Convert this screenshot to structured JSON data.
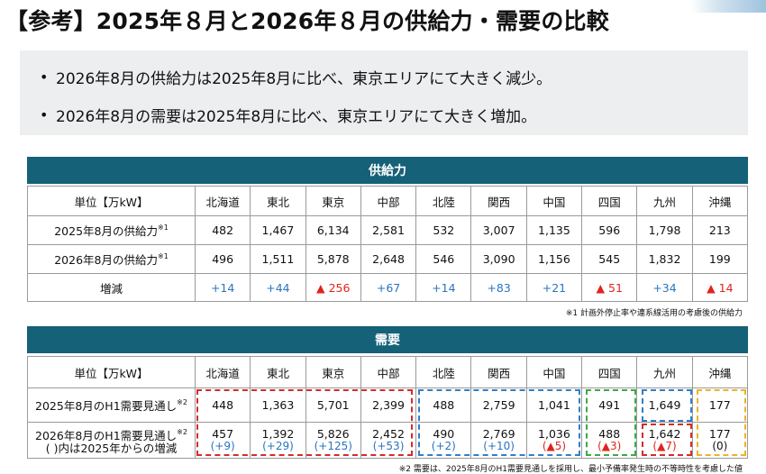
{
  "title": "【参考】2025年８月と2026年８月の供給力・需要の比較",
  "bullets": [
    "2026年8月の供給力は2025年8月に比べ、東京エリアにて大きく減少。",
    "2026年8月の需要は2025年8月に比べ、東京エリアにて大きく増加。"
  ],
  "supply": {
    "band_title": "供給力",
    "unit_label": "単位【万kW】",
    "areas": [
      "北海道",
      "東北",
      "東京",
      "中部",
      "北陸",
      "関西",
      "中国",
      "四国",
      "九州",
      "沖縄"
    ],
    "row2025_label": "2025年8月の供給力",
    "row2025_sup": "※1",
    "row2025": [
      "482",
      "1,467",
      "6,134",
      "2,581",
      "532",
      "3,007",
      "1,135",
      "596",
      "1,798",
      "213"
    ],
    "row2026_label": "2026年8月の供給力",
    "row2026_sup": "※1",
    "row2026": [
      "496",
      "1,511",
      "5,878",
      "2,648",
      "546",
      "3,090",
      "1,156",
      "545",
      "1,832",
      "199"
    ],
    "change_label": "増減",
    "change": [
      "+14",
      "+44",
      "▲ 256",
      "+67",
      "+14",
      "+83",
      "+21",
      "▲ 51",
      "+34",
      "▲ 14"
    ],
    "note": "※1 計画外停止率や連系線活用の考慮後の供給力"
  },
  "demand": {
    "band_title": "需要",
    "unit_label": "単位【万kW】",
    "areas": [
      "北海道",
      "東北",
      "東京",
      "中部",
      "北陸",
      "関西",
      "中国",
      "四国",
      "九州",
      "沖縄"
    ],
    "row2025_label": "2025年8月のH1需要見通し",
    "row2025_sup": "※2",
    "row2025": [
      "448",
      "1,363",
      "5,701",
      "2,399",
      "488",
      "2,759",
      "1,041",
      "491",
      "1,649",
      "177"
    ],
    "row2026_label": "2026年8月のH1需要見通し",
    "row2026_sup": "※2",
    "row2026_label2": "( )内は2025年からの増減",
    "row2026": [
      "457",
      "1,392",
      "5,826",
      "2,452",
      "490",
      "2,769",
      "1,036",
      "488",
      "1,642",
      "177"
    ],
    "row2026_diff": [
      "(+9)",
      "(+29)",
      "(+125)",
      "(+53)",
      "(+2)",
      "(+10)",
      "(▲5)",
      "(▲3)",
      "(▲7)",
      "(0)"
    ],
    "note": "※2 需要は、2025年8月のH1需要見通しを採用し、最小予備率発生時の不等時性を考慮した値"
  },
  "colors": {
    "band": "#156178",
    "increase": "#2a74c0",
    "decrease": "#e0241c",
    "box_red": "#d52b2b",
    "box_blue": "#2e7fca",
    "box_green": "#3ea84a",
    "box_yellow": "#e9b42a"
  }
}
